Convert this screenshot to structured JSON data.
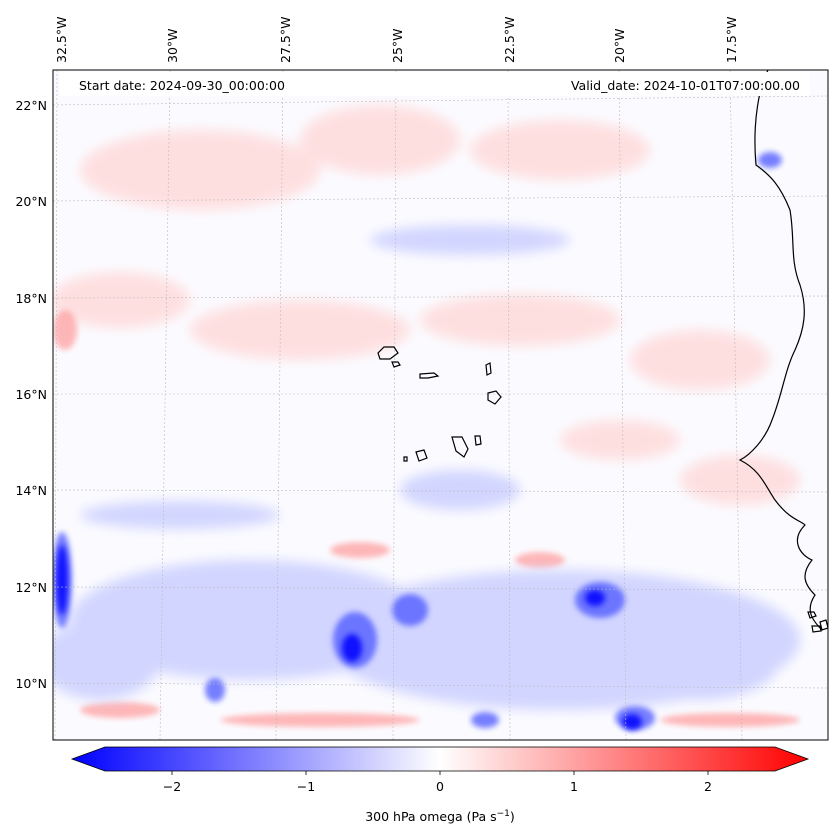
{
  "header": {
    "start_date": "Start date: 2024-09-30_00:00:00",
    "valid_date": "Valid_date: 2024-10-01T07:00:00.00"
  },
  "lon_labels": [
    "32.5°W",
    "30°W",
    "27.5°W",
    "25°W",
    "22.5°W",
    "20°W",
    "17.5°W"
  ],
  "lat_labels": [
    "22°N",
    "20°N",
    "18°N",
    "16°N",
    "14°N",
    "12°N",
    "10°N"
  ],
  "colorbar": {
    "ticks": [
      "−2",
      "−1",
      "0",
      "1",
      "2"
    ],
    "label": "300 hPa omega (Pa s",
    "label_sup": "−1",
    "label_end": ")",
    "colors": {
      "negative": "#0000ff",
      "zero": "#ffffff",
      "positive": "#ff0000"
    }
  }
}
